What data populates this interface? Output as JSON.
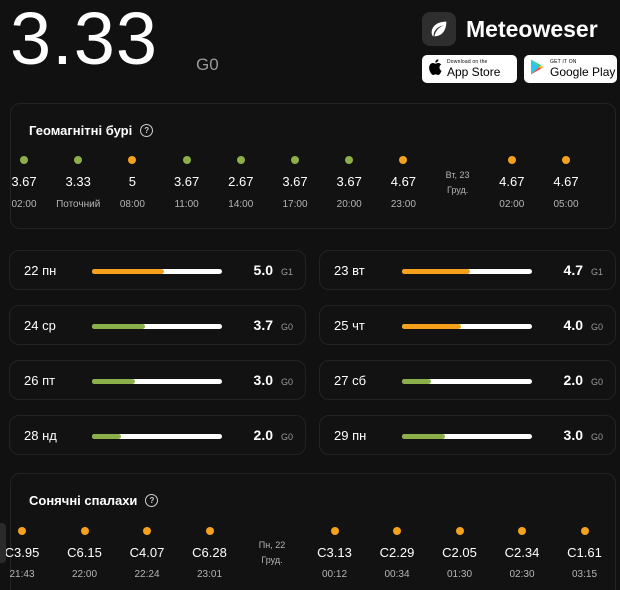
{
  "header": {
    "current_value": "3.33",
    "current_level": "G0"
  },
  "brand": {
    "name": "Meteoweser",
    "logo_icon": "leaf-icon"
  },
  "stores": {
    "apple": {
      "small": "Download on the",
      "large": "App Store",
      "icon": "apple-icon"
    },
    "google": {
      "small": "GET IT ON",
      "large": "Google Play",
      "icon": "google-play-icon"
    }
  },
  "geomagnetic": {
    "title": "Геомагнітні бурі",
    "timeline": [
      {
        "value": "3.67",
        "time": "02:00",
        "color": "#8bb04a"
      },
      {
        "value": "3.33",
        "time": "Поточний",
        "color": "#8bb04a"
      },
      {
        "value": "5",
        "time": "08:00",
        "color": "#f5a11c"
      },
      {
        "value": "3.67",
        "time": "11:00",
        "color": "#8bb04a"
      },
      {
        "value": "2.67",
        "time": "14:00",
        "color": "#8bb04a"
      },
      {
        "value": "3.67",
        "time": "17:00",
        "color": "#8bb04a"
      },
      {
        "value": "3.67",
        "time": "20:00",
        "color": "#8bb04a"
      },
      {
        "value": "4.67",
        "time": "23:00",
        "color": "#f5a11c"
      },
      {
        "day_line1": "Вт, 23",
        "day_line2": "Груд."
      },
      {
        "value": "4.67",
        "time": "02:00",
        "color": "#f5a11c"
      },
      {
        "value": "4.67",
        "time": "05:00",
        "color": "#f5a11c"
      }
    ],
    "forecast": [
      {
        "day": "22 пн",
        "value": "5.0",
        "level": "G1",
        "fill": 0.55,
        "color": "#f5a11c"
      },
      {
        "day": "23 вт",
        "value": "4.7",
        "level": "G1",
        "fill": 0.52,
        "color": "#f5a11c"
      },
      {
        "day": "24 ср",
        "value": "3.7",
        "level": "G0",
        "fill": 0.41,
        "color": "#8bb04a"
      },
      {
        "day": "25 чт",
        "value": "4.0",
        "level": "G0",
        "fill": 0.45,
        "color": "#f5a11c"
      },
      {
        "day": "26 пт",
        "value": "3.0",
        "level": "G0",
        "fill": 0.33,
        "color": "#8bb04a"
      },
      {
        "day": "27 сб",
        "value": "2.0",
        "level": "G0",
        "fill": 0.22,
        "color": "#8bb04a"
      },
      {
        "day": "28 нд",
        "value": "2.0",
        "level": "G0",
        "fill": 0.22,
        "color": "#8bb04a"
      },
      {
        "day": "29 пн",
        "value": "3.0",
        "level": "G0",
        "fill": 0.33,
        "color": "#8bb04a"
      }
    ]
  },
  "solar": {
    "title": "Сонячні спалахи",
    "timeline": [
      {
        "value": "C3.95",
        "time": "21:43",
        "color": "#f5a11c"
      },
      {
        "value": "C6.15",
        "time": "22:00",
        "color": "#f5a11c"
      },
      {
        "value": "C4.07",
        "time": "22:24",
        "color": "#f5a11c"
      },
      {
        "value": "C6.28",
        "time": "23:01",
        "color": "#f5a11c"
      },
      {
        "day_line1": "Пн, 22",
        "day_line2": "Груд."
      },
      {
        "value": "C3.13",
        "time": "00:12",
        "color": "#f5a11c"
      },
      {
        "value": "C2.29",
        "time": "00:34",
        "color": "#f5a11c"
      },
      {
        "value": "C2.05",
        "time": "01:30",
        "color": "#f5a11c"
      },
      {
        "value": "C2.34",
        "time": "02:30",
        "color": "#f5a11c"
      },
      {
        "value": "C1.61",
        "time": "03:15",
        "color": "#f5a11c"
      }
    ]
  }
}
